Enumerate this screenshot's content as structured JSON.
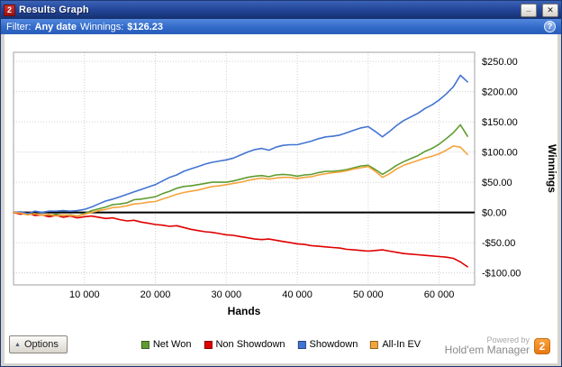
{
  "window": {
    "title": "Results Graph",
    "icon_label": "2",
    "controls": {
      "minimize_label": "_",
      "close_label": "✕"
    }
  },
  "filter_bar": {
    "filter_label": "Filter:",
    "filter_value": "Any date",
    "winnings_label": "Winnings:",
    "winnings_value": "$126.23",
    "help_label": "?"
  },
  "chart_data": {
    "type": "line",
    "xlabel": "Hands",
    "ylabel": "Winnings",
    "xlim": [
      0,
      65000
    ],
    "ylim": [
      -120,
      265
    ],
    "grid": true,
    "zero_line": 0,
    "x_ticks": [
      {
        "value": 10000,
        "label": "10 000"
      },
      {
        "value": 20000,
        "label": "20 000"
      },
      {
        "value": 30000,
        "label": "30 000"
      },
      {
        "value": 40000,
        "label": "40 000"
      },
      {
        "value": 50000,
        "label": "50 000"
      },
      {
        "value": 60000,
        "label": "60 000"
      }
    ],
    "y_ticks": [
      {
        "value": 250,
        "label": "$250.00"
      },
      {
        "value": 200,
        "label": "$200.00"
      },
      {
        "value": 150,
        "label": "$150.00"
      },
      {
        "value": 100,
        "label": "$100.00"
      },
      {
        "value": 50,
        "label": "$50.00"
      },
      {
        "value": 0,
        "label": "$0.00"
      },
      {
        "value": -50,
        "label": "-$50.00"
      },
      {
        "value": -100,
        "label": "-$100.00"
      }
    ],
    "x": [
      0,
      1000,
      2000,
      3000,
      4000,
      5000,
      6000,
      7000,
      8000,
      9000,
      10000,
      11000,
      12000,
      13000,
      14000,
      15000,
      16000,
      17000,
      18000,
      19000,
      20000,
      21000,
      22000,
      23000,
      24000,
      25000,
      26000,
      27000,
      28000,
      29000,
      30000,
      31000,
      32000,
      33000,
      34000,
      35000,
      36000,
      37000,
      38000,
      39000,
      40000,
      41000,
      42000,
      43000,
      44000,
      45000,
      46000,
      47000,
      48000,
      49000,
      50000,
      51000,
      52000,
      53000,
      54000,
      55000,
      56000,
      57000,
      58000,
      59000,
      60000,
      61000,
      62000,
      63000,
      64000
    ],
    "series": [
      {
        "name": "Net Won",
        "color": "#5e9c30",
        "values": [
          0,
          -2,
          -3,
          -3,
          -4,
          -5,
          -3,
          -5,
          -4,
          -6,
          -2,
          3,
          6,
          9,
          13,
          14,
          16,
          21,
          22,
          24,
          26,
          31,
          35,
          40,
          43,
          44,
          46,
          48,
          50,
          50,
          50,
          52,
          55,
          58,
          60,
          61,
          59,
          62,
          63,
          62,
          60,
          62,
          63,
          66,
          68,
          68,
          69,
          71,
          74,
          77,
          78,
          71,
          63,
          70,
          78,
          84,
          89,
          94,
          101,
          106,
          113,
          122,
          132,
          145,
          126
        ]
      },
      {
        "name": "Non Showdown",
        "color": "#e00000",
        "values": [
          0,
          -3,
          -1,
          -5,
          -4,
          -7,
          -5,
          -8,
          -6,
          -9,
          -7,
          -6,
          -8,
          -10,
          -9,
          -12,
          -14,
          -13,
          -16,
          -18,
          -20,
          -21,
          -23,
          -22,
          -25,
          -28,
          -30,
          -32,
          -33,
          -35,
          -37,
          -38,
          -40,
          -42,
          -44,
          -45,
          -44,
          -46,
          -48,
          -50,
          -52,
          -53,
          -55,
          -56,
          -57,
          -58,
          -59,
          -61,
          -62,
          -63,
          -64,
          -63,
          -62,
          -64,
          -66,
          -68,
          -69,
          -70,
          -71,
          -72,
          -73,
          -74,
          -76,
          -82,
          -90
        ]
      },
      {
        "name": "Showdown",
        "color": "#4274d2",
        "values": [
          0,
          1,
          -2,
          2,
          0,
          2,
          2,
          3,
          2,
          3,
          5,
          9,
          14,
          19,
          22,
          26,
          30,
          34,
          38,
          42,
          46,
          52,
          58,
          62,
          68,
          72,
          76,
          80,
          83,
          85,
          87,
          90,
          95,
          100,
          104,
          106,
          103,
          108,
          111,
          112,
          112,
          115,
          118,
          122,
          125,
          126,
          128,
          132,
          136,
          140,
          142,
          134,
          125,
          134,
          144,
          152,
          158,
          164,
          172,
          178,
          186,
          196,
          208,
          227,
          216
        ]
      },
      {
        "name": "All-In EV",
        "color": "#f5a43c",
        "values": [
          0,
          -1,
          -4,
          -2,
          -5,
          -3,
          -6,
          -4,
          -5,
          -6,
          -3,
          0,
          3,
          5,
          8,
          9,
          11,
          14,
          15,
          17,
          18,
          22,
          26,
          30,
          33,
          35,
          37,
          40,
          43,
          44,
          46,
          48,
          50,
          53,
          55,
          57,
          55,
          57,
          58,
          58,
          56,
          58,
          59,
          62,
          64,
          66,
          67,
          69,
          72,
          74,
          76,
          68,
          58,
          64,
          72,
          78,
          82,
          86,
          90,
          93,
          97,
          103,
          110,
          108,
          96
        ]
      }
    ]
  },
  "footer": {
    "options_label": "Options",
    "powered_by_line1": "Powered by",
    "powered_by_line2": "Hold'em Manager",
    "powered_by_badge": "2"
  }
}
